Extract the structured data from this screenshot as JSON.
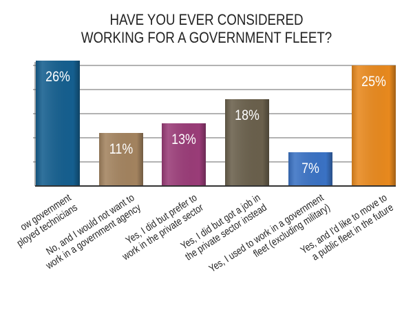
{
  "chart_data": {
    "type": "bar",
    "title": [
      "HAVE YOU EVER CONSIDERED",
      "WORKING FOR A GOVERNMENT FLEET?"
    ],
    "categories": [
      [
        "ow government",
        "ployed technicians"
      ],
      [
        "No, and I would not want to",
        "work in a government agency"
      ],
      [
        "Yes, I did but prefer to",
        "work in the private sector"
      ],
      [
        "Yes, I did but got a job in",
        "the private sector instead"
      ],
      [
        "Yes, I used to work in a government",
        "fleet (excluding military)"
      ],
      [
        "Yes, and I'd like to move to",
        "a public fleet in the future"
      ]
    ],
    "values": [
      26,
      11,
      13,
      18,
      7,
      25
    ],
    "data_labels": [
      "26%",
      "11%",
      "13%",
      "18%",
      "7%",
      "25%"
    ],
    "colors": [
      "#155f8f",
      "#a3835f",
      "#9a3c78",
      "#6a604c",
      "#3a72c4",
      "#e8891e"
    ],
    "ylim": [
      0,
      26
    ],
    "gridlines": [
      5,
      10,
      15,
      20,
      25
    ],
    "xlabel": "",
    "ylabel": ""
  }
}
